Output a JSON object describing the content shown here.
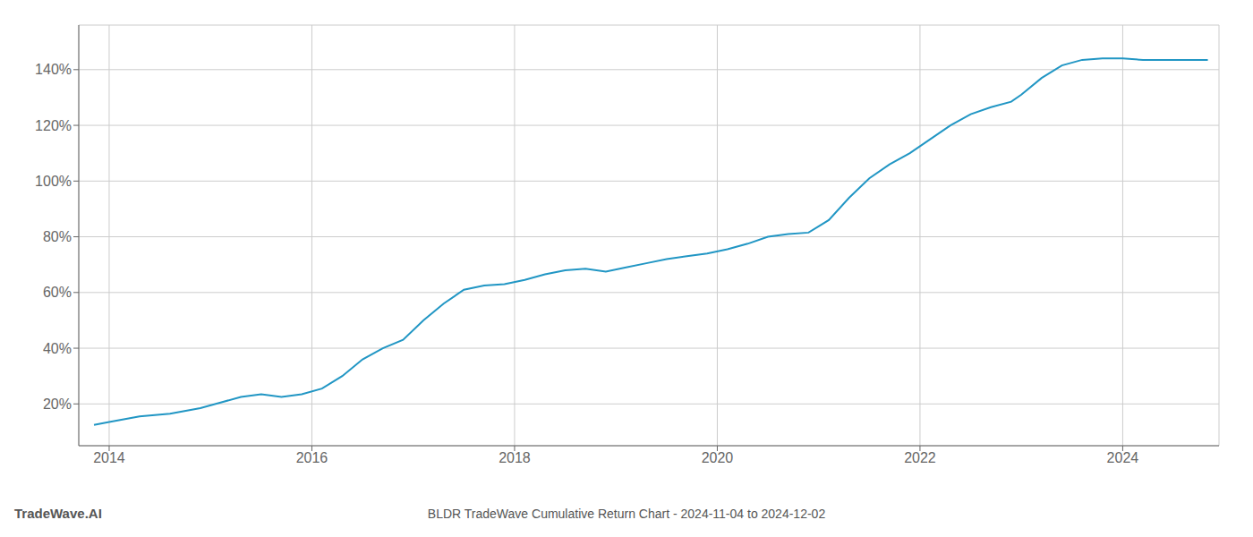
{
  "chart_data": {
    "type": "line",
    "title": "BLDR TradeWave Cumulative Return Chart - 2024-11-04 to 2024-12-02",
    "annotations": [
      "TradeWave.AI"
    ],
    "x": [
      2013.85,
      2014.0,
      2014.3,
      2014.6,
      2014.9,
      2015.1,
      2015.3,
      2015.5,
      2015.7,
      2015.9,
      2016.1,
      2016.3,
      2016.5,
      2016.7,
      2016.9,
      2017.1,
      2017.3,
      2017.5,
      2017.7,
      2017.9,
      2018.1,
      2018.3,
      2018.5,
      2018.7,
      2018.9,
      2019.1,
      2019.3,
      2019.5,
      2019.7,
      2019.9,
      2020.1,
      2020.3,
      2020.5,
      2020.7,
      2020.9,
      2021.1,
      2021.3,
      2021.5,
      2021.7,
      2021.9,
      2022.1,
      2022.3,
      2022.5,
      2022.7,
      2022.9,
      2023.0,
      2023.2,
      2023.4,
      2023.6,
      2023.8,
      2024.0,
      2024.2,
      2024.5,
      2024.84
    ],
    "values": [
      0.125,
      0.135,
      0.155,
      0.165,
      0.185,
      0.205,
      0.225,
      0.235,
      0.225,
      0.235,
      0.255,
      0.3,
      0.36,
      0.4,
      0.43,
      0.5,
      0.56,
      0.61,
      0.625,
      0.63,
      0.645,
      0.665,
      0.68,
      0.685,
      0.675,
      0.69,
      0.705,
      0.72,
      0.73,
      0.74,
      0.755,
      0.775,
      0.8,
      0.81,
      0.815,
      0.86,
      0.94,
      1.01,
      1.06,
      1.1,
      1.15,
      1.2,
      1.24,
      1.265,
      1.285,
      1.31,
      1.37,
      1.415,
      1.435,
      1.44,
      1.44,
      1.435,
      1.435,
      1.435
    ],
    "color": "#2196c4",
    "xlim": [
      2013.7,
      2024.95
    ],
    "xticks": [
      2014,
      2016,
      2018,
      2020,
      2022,
      2024
    ],
    "ylim": [
      0.05,
      1.56
    ],
    "yticks": [
      {
        "value": 0.2,
        "label": "20%"
      },
      {
        "value": 0.4,
        "label": "40%"
      },
      {
        "value": 0.6,
        "label": "60%"
      },
      {
        "value": 0.8,
        "label": "80%"
      },
      {
        "value": 1.0,
        "label": "100%"
      },
      {
        "value": 1.2,
        "label": "120%"
      },
      {
        "value": 1.4,
        "label": "140%"
      }
    ],
    "grid": true
  }
}
